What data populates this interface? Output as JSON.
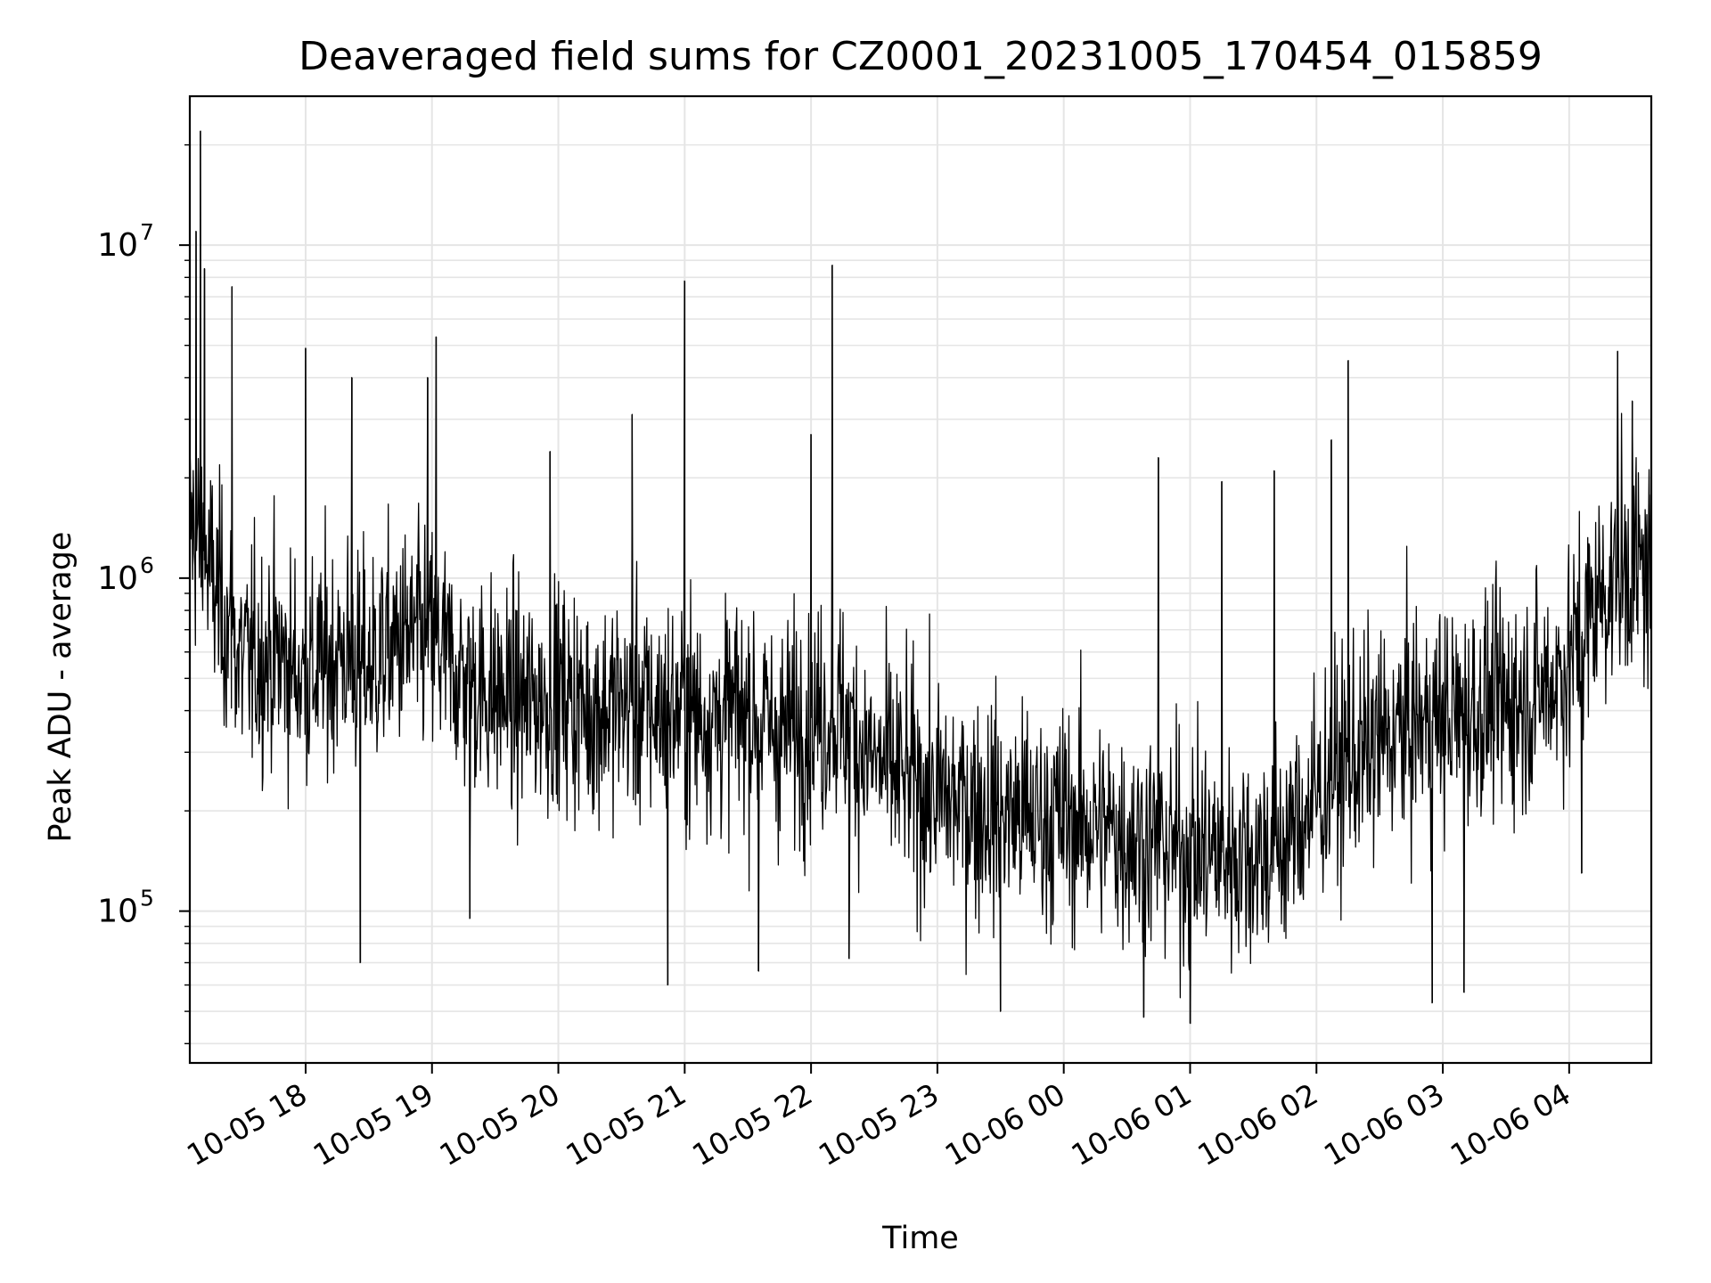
{
  "chart_data": {
    "type": "line",
    "title": "Deaveraged field sums for CZ0001_20231005_170454_015859",
    "xlabel": "Time",
    "ylabel": "Peak ADU - average",
    "x_tick_labels": [
      "10-05 18",
      "10-05 19",
      "10-05 20",
      "10-05 21",
      "10-05 22",
      "10-05 23",
      "10-06 00",
      "10-06 01",
      "10-06 02",
      "10-06 03",
      "10-06 04"
    ],
    "y_tick_labels": [
      {
        "base": "10",
        "exp": "5",
        "value": 100000
      },
      {
        "base": "10",
        "exp": "6",
        "value": 1000000
      },
      {
        "base": "10",
        "exp": "7",
        "value": 10000000
      }
    ],
    "x_range": [
      "2023-10-05 17:05",
      "2023-10-06 04:39"
    ],
    "ylim": [
      35000,
      28000000
    ],
    "y_scale": "log",
    "grid": true,
    "line_color": "#000000",
    "grid_color": "#e5e5e5",
    "x": [
      "2023-10-05 17:05",
      "2023-10-05 17:15",
      "2023-10-05 17:30",
      "2023-10-05 17:45",
      "2023-10-05 18:00",
      "2023-10-05 18:15",
      "2023-10-05 18:30",
      "2023-10-05 18:45",
      "2023-10-05 19:00",
      "2023-10-05 19:15",
      "2023-10-05 19:30",
      "2023-10-05 19:45",
      "2023-10-05 20:00",
      "2023-10-05 20:15",
      "2023-10-05 20:30",
      "2023-10-05 20:45",
      "2023-10-05 21:00",
      "2023-10-05 21:15",
      "2023-10-05 21:30",
      "2023-10-05 21:45",
      "2023-10-05 22:00",
      "2023-10-05 22:15",
      "2023-10-05 22:30",
      "2023-10-05 22:45",
      "2023-10-05 23:00",
      "2023-10-05 23:15",
      "2023-10-05 23:30",
      "2023-10-05 23:45",
      "2023-10-06 00:00",
      "2023-10-06 00:15",
      "2023-10-06 00:30",
      "2023-10-06 00:45",
      "2023-10-06 01:00",
      "2023-10-06 01:15",
      "2023-10-06 01:30",
      "2023-10-06 01:45",
      "2023-10-06 02:00",
      "2023-10-06 02:15",
      "2023-10-06 02:30",
      "2023-10-06 02:45",
      "2023-10-06 03:00",
      "2023-10-06 03:15",
      "2023-10-06 03:30",
      "2023-10-06 03:45",
      "2023-10-06 04:00",
      "2023-10-06 04:15",
      "2023-10-06 04:30",
      "2023-10-06 04:39"
    ],
    "series": [
      {
        "baseline": [
          1500000,
          1000000,
          550000,
          600000,
          500000,
          600000,
          550000,
          650000,
          650000,
          500000,
          450000,
          420000,
          450000,
          400000,
          420000,
          400000,
          400000,
          380000,
          400000,
          340000,
          380000,
          380000,
          280000,
          250000,
          220000,
          210000,
          200000,
          190000,
          190000,
          180000,
          170000,
          160000,
          150000,
          150000,
          150000,
          160000,
          220000,
          280000,
          320000,
          360000,
          380000,
          400000,
          420000,
          450000,
          550000,
          900000,
          1100000,
          1000000
        ]
      }
    ],
    "spikes": [
      {
        "x": "2023-10-05 17:10",
        "y": 22000000
      },
      {
        "x": "2023-10-05 17:08",
        "y": 11000000
      },
      {
        "x": "2023-10-05 17:12",
        "y": 8500000
      },
      {
        "x": "2023-10-05 17:25",
        "y": 7500000
      },
      {
        "x": "2023-10-05 18:00",
        "y": 4900000
      },
      {
        "x": "2023-10-05 18:22",
        "y": 4000000
      },
      {
        "x": "2023-10-05 18:26",
        "y": 70000
      },
      {
        "x": "2023-10-05 19:02",
        "y": 5300000
      },
      {
        "x": "2023-10-05 18:58",
        "y": 4000000
      },
      {
        "x": "2023-10-05 19:18",
        "y": 95000
      },
      {
        "x": "2023-10-05 19:56",
        "y": 2400000
      },
      {
        "x": "2023-10-05 20:35",
        "y": 3100000
      },
      {
        "x": "2023-10-05 21:00",
        "y": 7800000
      },
      {
        "x": "2023-10-05 20:52",
        "y": 60000
      },
      {
        "x": "2023-10-05 21:35",
        "y": 66000
      },
      {
        "x": "2023-10-05 22:10",
        "y": 8700000
      },
      {
        "x": "2023-10-05 22:00",
        "y": 2700000
      },
      {
        "x": "2023-10-05 22:18",
        "y": 72000
      },
      {
        "x": "2023-10-05 23:30",
        "y": 50000
      },
      {
        "x": "2023-10-06 00:45",
        "y": 2300000
      },
      {
        "x": "2023-10-06 00:38",
        "y": 48000
      },
      {
        "x": "2023-10-06 01:00",
        "y": 46000
      },
      {
        "x": "2023-10-06 01:15",
        "y": 1950000
      },
      {
        "x": "2023-10-06 01:40",
        "y": 2100000
      },
      {
        "x": "2023-10-06 02:15",
        "y": 4500000
      },
      {
        "x": "2023-10-06 02:07",
        "y": 2600000
      },
      {
        "x": "2023-10-06 02:55",
        "y": 53000
      },
      {
        "x": "2023-10-06 03:10",
        "y": 57000
      },
      {
        "x": "2023-10-06 04:23",
        "y": 4800000
      },
      {
        "x": "2023-10-06 04:30",
        "y": 3400000
      },
      {
        "x": "2023-10-06 04:06",
        "y": 130000
      }
    ]
  }
}
